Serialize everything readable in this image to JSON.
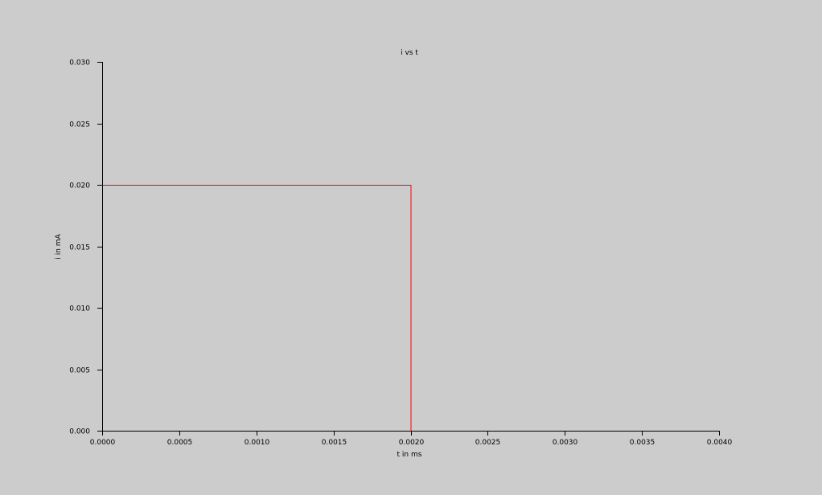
{
  "chart_data": {
    "type": "line",
    "title": "i vs t",
    "xlabel": "t in ms",
    "ylabel": "i in mA",
    "xlim": [
      0.0,
      0.004
    ],
    "ylim": [
      0.0,
      0.03
    ],
    "xticks": [
      "0.0000",
      "0.0005",
      "0.0010",
      "0.0015",
      "0.0020",
      "0.0025",
      "0.0030",
      "0.0035",
      "0.0040"
    ],
    "yticks": [
      "0.000",
      "0.005",
      "0.010",
      "0.015",
      "0.020",
      "0.025",
      "0.030"
    ],
    "grid": false,
    "legend": "none",
    "series": [
      {
        "color": "#ff0000",
        "x": [
          0.0,
          0.002,
          0.002
        ],
        "y": [
          0.02,
          0.02,
          0.0
        ]
      }
    ]
  },
  "colors": {
    "background": "#cccccc",
    "axis": "#000000"
  }
}
